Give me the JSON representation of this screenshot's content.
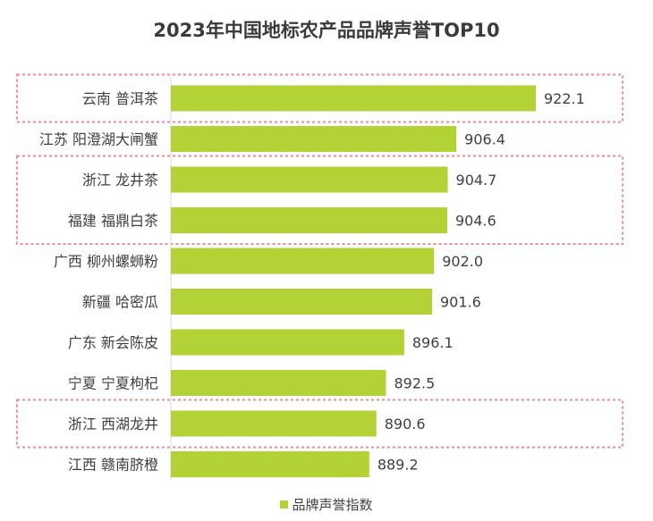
{
  "chart_data": {
    "type": "bar",
    "orientation": "horizontal",
    "title": "2023年中国地标农产品品牌声誉TOP10",
    "categories": [
      "云南 普洱茶",
      "江苏 阳澄湖大闸蟹",
      "浙江 龙井茶",
      "福建 福鼎白茶",
      "广西 柳州螺蛳粉",
      "新疆 哈密瓜",
      "广东  新会陈皮",
      "宁夏  宁夏枸杞",
      "浙江 西湖龙井",
      "江西 赣南脐橙"
    ],
    "series": [
      {
        "name": "品牌声誉指数",
        "values": [
          922.1,
          906.4,
          904.7,
          904.6,
          902.0,
          901.6,
          896.1,
          892.5,
          890.6,
          889.2
        ],
        "labels": [
          "922.1",
          "906.4",
          "904.7",
          "904.6",
          "902.0",
          "901.6",
          "896.1",
          "892.5",
          "890.6",
          "889.2"
        ]
      }
    ],
    "xlim": [
      850,
      922.1
    ],
    "legend_position": "bottom",
    "highlight_groups": [
      [
        0
      ],
      [
        2,
        3
      ],
      [
        8
      ]
    ]
  },
  "colors": {
    "bar": "#b2d235",
    "highlight_box": "#f08a93",
    "text": "#404040",
    "axis": "#d9d9d9"
  }
}
